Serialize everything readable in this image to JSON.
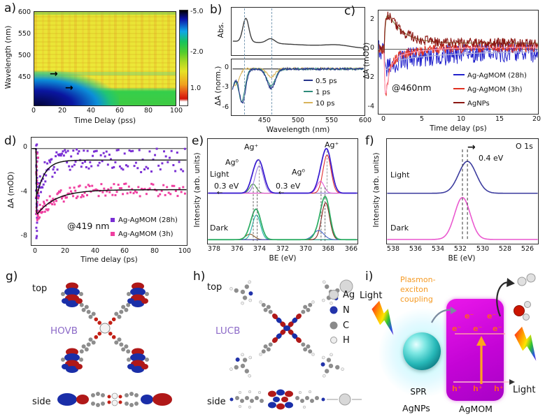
{
  "panels": {
    "a": {
      "label": "a)",
      "ylabel": "Wavelength (nm)",
      "xlabel": "Time Delay (pss)",
      "yticks": [
        "600",
        "550",
        "500",
        "450"
      ],
      "xticks": [
        "0",
        "20",
        "40",
        "60",
        "80",
        "100"
      ],
      "cbar": [
        "-5.0",
        "-2.0",
        "1.0"
      ]
    },
    "b": {
      "label": "b)",
      "abs_ylabel": "Abs.",
      "da_ylabel": "ΔA (norm.)",
      "xlabel": "Wavelength (nm)",
      "xticks": [
        "450",
        "500",
        "550",
        "600"
      ],
      "yticks": [
        "0",
        "-3",
        "-6"
      ],
      "legend": [
        "0.5 ps",
        "1 ps",
        "10 ps"
      ],
      "legend_colors": [
        "#27348b",
        "#2e8b7a",
        "#d8b35a"
      ]
    },
    "c": {
      "label": "c)",
      "ylabel": "ΔA (mOD)",
      "xlabel": "Time delay (ps)",
      "xticks": [
        "0",
        "5",
        "10",
        "15",
        "20"
      ],
      "yticks": [
        "2",
        "0",
        "-2",
        "-4"
      ],
      "note": "@460nm",
      "legend": [
        "Ag-AgMOM (28h)",
        "Ag-AgMOM (3h)",
        "AgNPs"
      ],
      "legend_colors": [
        "#2222cc",
        "#e03020",
        "#8b1712"
      ]
    },
    "d": {
      "label": "d)",
      "ylabel": "ΔA (mOD)",
      "xlabel": "Time delay (ps)",
      "xticks": [
        "0",
        "20",
        "40",
        "60",
        "80",
        "100"
      ],
      "yticks": [
        "0",
        "-4",
        "-8"
      ],
      "note": "@419 nm",
      "legend": [
        "Ag-AgMOM (28h)",
        "Ag-AgMOM (3h)"
      ],
      "legend_colors": [
        "#7a2fd4",
        "#ef3fa0"
      ]
    },
    "e": {
      "label": "e)",
      "ylabel": "Intensity (arb. units)",
      "xlabel": "BE (eV)",
      "xticks": [
        "378",
        "376",
        "374",
        "372",
        "370",
        "368",
        "366"
      ],
      "light": "Light",
      "dark": "Dark",
      "agp_l": "Ag⁺",
      "ag0_l": "Ag⁰",
      "agp_r": "Ag⁺",
      "ag0_r": "Ag⁰",
      "shift_l": "0.3 eV",
      "shift_r": "0.3 eV",
      "arrow_left": "←"
    },
    "f": {
      "label": "f)",
      "ylabel": "Intensity (arb. units)",
      "xlabel": "BE (eV)",
      "xticks": [
        "538",
        "536",
        "534",
        "532",
        "530",
        "528",
        "526"
      ],
      "light": "Light",
      "dark": "Dark",
      "corner": "O 1s",
      "shift": "0.4 eV",
      "arrow_right": "→"
    },
    "g": {
      "label": "g)",
      "top": "top",
      "side": "side",
      "orbital": "HOVB"
    },
    "h": {
      "label": "h)",
      "top": "top",
      "side": "side",
      "orbital": "LUCB",
      "atoms": [
        "Ag",
        "N",
        "C",
        "H"
      ]
    },
    "i": {
      "label": "i)",
      "coupling": "Plasmon-exciton coupling",
      "light1": "Light",
      "light2": "Light",
      "spr": "SPR",
      "agnps": "AgNPs",
      "agmom": "AgMOM",
      "e": [
        "e⁻",
        "e⁻",
        "e⁻",
        "e⁻",
        "e⁻"
      ],
      "h": [
        "h⁺",
        "h⁺",
        "h⁺"
      ]
    }
  },
  "chart_data": [
    {
      "id": "a",
      "type": "heatmap",
      "xlabel": "Time Delay (pss)",
      "ylabel": "Wavelength (nm)",
      "xlim": [
        0,
        100
      ],
      "ylim": [
        400,
        600
      ],
      "colorbar_ticks": [
        -5.0,
        -2.0,
        1.0
      ],
      "features": [
        "intense negative (blue) signal 405-425 nm near t=0",
        "persistent green bleach band ~410-425 nm at all delays",
        "weak bleach band near 455-460 nm (arrows)",
        "yellow/orange background ~ +0.5"
      ]
    },
    {
      "id": "b_abs",
      "type": "line",
      "ylabel": "Abs.",
      "xlim": [
        400,
        600
      ],
      "ylim": [
        0,
        1.05
      ],
      "series": [
        {
          "name": "absorption",
          "color": "#3a3a3a",
          "w": 1.4,
          "n": 300,
          "model": "gauss",
          "p": {
            "base": 0.31,
            "slope": -0.00078,
            "x0": 400,
            "peaks": [
              [
                420,
                0.52,
                6.5
              ],
              [
                458,
                0.1,
                9
              ],
              [
                560,
                0.045,
                26
              ]
            ]
          }
        }
      ]
    },
    {
      "id": "b_da",
      "type": "line",
      "ylabel": "ΔA (norm.)",
      "xlabel": "Wavelength (nm)",
      "xlim": [
        400,
        600
      ],
      "ylim": [
        -7.2,
        1.5
      ],
      "hlines": [
        {
          "y": 0,
          "color": "#111",
          "w": 1
        }
      ],
      "series": [
        {
          "name": "10 ps",
          "color": "#d8b35a",
          "w": 1.1,
          "n": 260,
          "seed": 2,
          "model": "gauss",
          "p": {
            "base": 0.05,
            "noise": 0.16,
            "peaks": [
              [
                399,
                -2.6,
                7
              ],
              [
                408,
                -1.6,
                6
              ],
              [
                459,
                -1.25,
                9
              ]
            ]
          }
        },
        {
          "name": "1 ps",
          "color": "#2e8b7a",
          "w": 1.1,
          "n": 260,
          "seed": 4,
          "model": "gauss",
          "p": {
            "base": 0,
            "noise": 0.15,
            "peaks": [
              [
                396,
                -3.7,
                8
              ],
              [
                414,
                -5.0,
                7
              ],
              [
                459,
                -2.6,
                9
              ]
            ]
          }
        },
        {
          "name": "0.5 ps",
          "color": "#27348b",
          "w": 1.1,
          "n": 260,
          "seed": 6,
          "model": "gauss",
          "p": {
            "base": 0,
            "noise": 0.17,
            "peaks": [
              [
                396,
                -4.0,
                8
              ],
              [
                415,
                -5.3,
                7
              ],
              [
                459,
                -3.05,
                9
              ]
            ]
          }
        }
      ]
    },
    {
      "id": "c",
      "type": "line",
      "xlabel": "Time delay (ps)",
      "ylabel": "ΔA (mOD)",
      "note": "@460nm",
      "xlim": [
        -0.7,
        20.05
      ],
      "ylim": [
        -4.5,
        2.7
      ],
      "hlines": [
        {
          "y": 0,
          "color": "#222",
          "w": 0.8
        }
      ],
      "series": [
        {
          "name": "Ag-AgMOM (28h)",
          "color": "#2222cc",
          "w": 1,
          "n": 300,
          "seed": 11,
          "model": "decay",
          "p": {
            "pre": 0,
            "base": -0.12,
            "a": [
              -1.05,
              -0.78
            ],
            "tau": [
              0.7,
              7.5
            ],
            "rise": 0.12,
            "noise": 0.75
          }
        },
        {
          "name": "fit 28h",
          "color": "#b8b8d8",
          "w": 1.2,
          "n": 200,
          "model": "decay",
          "p": {
            "pre": 0,
            "base": -0.12,
            "a": [
              -1.05,
              -0.78
            ],
            "tau": [
              0.7,
              7.5
            ],
            "rise": 0.12
          }
        },
        {
          "name": "Ag-AgMOM (3h)",
          "color": "#e03020",
          "w": 1,
          "n": 300,
          "seed": 3,
          "model": "decay",
          "p": {
            "pre": 0,
            "base": 0.14,
            "a": [
              -4.0,
              -0.92
            ],
            "tau": [
              0.5,
              3.8
            ],
            "rise": 0.08,
            "noise": 0.35
          }
        },
        {
          "name": "fit 3h",
          "color": "#ff9ab5",
          "w": 1.2,
          "n": 200,
          "model": "decay",
          "p": {
            "pre": 0,
            "base": 0.14,
            "a": [
              -4.0,
              -0.92
            ],
            "tau": [
              0.5,
              3.8
            ],
            "rise": 0.08
          }
        },
        {
          "name": "fit AgNPs",
          "color": "#8f8f55",
          "w": 1.3,
          "n": 200,
          "model": "decay",
          "p": {
            "pre": 0,
            "base": 0.42,
            "a": [
              2.7
            ],
            "tau": [
              2.0
            ],
            "rise": 0.18
          }
        },
        {
          "name": "AgNPs",
          "color": "#8b1712",
          "w": 1.1,
          "n": 300,
          "seed": 7,
          "model": "decay",
          "p": {
            "pre": 0,
            "base": 0.42,
            "a": [
              2.7
            ],
            "tau": [
              2.0
            ],
            "rise": 0.18,
            "noise": 0.35
          }
        }
      ]
    },
    {
      "id": "d",
      "type": "scatter",
      "xlabel": "Time delay (ps)",
      "ylabel": "ΔA (mOD)",
      "note": "@419 nm",
      "xlim": [
        -3,
        102
      ],
      "ylim": [
        -8.8,
        1.0
      ],
      "hlines": [
        {
          "y": 0,
          "color": "#333",
          "w": 1
        }
      ],
      "series": [
        {
          "name": "Ag-AgMOM (28h)",
          "color": "#7a2fd4",
          "style": "scatter",
          "n": 130,
          "seed": 5,
          "gamma": 1.7,
          "model": "decay",
          "p": {
            "pre": 0,
            "base": -1.05,
            "a": [
              -3.55
            ],
            "tau": [
              5.5
            ],
            "rise": 0.12,
            "noise": 1.0,
            "column": {
              "t": 0.5,
              "y0": -8.25,
              "y1": 0.3,
              "n": 24
            }
          }
        },
        {
          "name": "Ag-AgMOM (3h)",
          "color": "#ef3fa0",
          "style": "scatter",
          "n": 130,
          "seed": 9,
          "gamma": 1.6,
          "model": "decay",
          "p": {
            "pre": 0,
            "base": -3.75,
            "a": [
              -2.35
            ],
            "tau": [
              13
            ],
            "rise": 0.1,
            "noise": 0.55,
            "column": {
              "t": 0.8,
              "y0": -6.6,
              "y1": -0.4,
              "n": 16
            }
          }
        },
        {
          "name": "fit 28h",
          "color": "#111",
          "w": 1.5,
          "n": 220,
          "model": "decay",
          "p": {
            "pre": 0,
            "base": -1.05,
            "a": [
              -3.55
            ],
            "tau": [
              5.5
            ],
            "rise": 0.12
          }
        },
        {
          "name": "fit 3h",
          "color": "#111",
          "w": 1.5,
          "n": 220,
          "model": "decay",
          "p": {
            "pre": 0,
            "base": -3.75,
            "a": [
              -2.35
            ],
            "tau": [
              13
            ],
            "rise": 0.1
          }
        }
      ]
    },
    {
      "id": "e",
      "type": "line",
      "xlabel": "BE (eV)",
      "ylabel": "Intensity (arb. units)",
      "xlim": [
        378.6,
        365.4
      ],
      "ylim": [
        0,
        1.15
      ],
      "shift_annotations": [
        "0.3 eV",
        "0.3 eV"
      ],
      "peak_labels": [
        "Ag⁺",
        "Ag⁰"
      ],
      "vlines": [
        {
          "x": 374.6,
          "y0": 0.03,
          "y1": 0.62,
          "color": "#666",
          "dash": "3,2"
        },
        {
          "x": 374.25,
          "y0": 0.03,
          "y1": 0.62,
          "color": "#666",
          "dash": "3,2"
        },
        {
          "x": 368.6,
          "y0": 0.03,
          "y1": 0.62,
          "color": "#666",
          "dash": "3,2"
        },
        {
          "x": 368.25,
          "y0": 0.03,
          "y1": 0.62,
          "color": "#666",
          "dash": "3,2"
        },
        {
          "x": 374.07,
          "y0": 0.57,
          "y1": 0.93,
          "color": "#999",
          "dash": "3,2"
        },
        {
          "x": 368.07,
          "y0": 0.57,
          "y1": 1.02,
          "color": "#999",
          "dash": "3,2"
        }
      ],
      "series": [
        {
          "name": "dark baseline",
          "color": "#c8a060",
          "w": 1,
          "n": 40,
          "model": "gauss",
          "p": {
            "base": 0.045,
            "peaks": []
          }
        },
        {
          "name": "dark Ag0 374.9",
          "color": "#8a5a28",
          "w": 1.1,
          "n": 200,
          "model": "gauss",
          "p": {
            "base": 0.045,
            "peaks": [
              [
                374.9,
                0.06,
                0.55
              ]
            ]
          }
        },
        {
          "name": "dark Ag+ 374.3",
          "color": "#20b2a6",
          "w": 1.1,
          "n": 200,
          "model": "gauss",
          "p": {
            "base": 0.045,
            "peaks": [
              [
                374.32,
                0.27,
                0.5
              ]
            ]
          }
        },
        {
          "name": "dark Ag+ 368.2",
          "color": "#8a1f16",
          "w": 1.1,
          "n": 200,
          "model": "gauss",
          "p": {
            "base": 0.045,
            "peaks": [
              [
                368.2,
                0.405,
                0.5
              ]
            ]
          }
        },
        {
          "name": "dark Ag0 368.8",
          "color": "#4565c8",
          "w": 1.1,
          "n": 200,
          "model": "gauss",
          "p": {
            "base": 0.045,
            "peaks": [
              [
                368.82,
                0.1,
                0.65
              ]
            ]
          }
        },
        {
          "name": "dark envelope",
          "color": "#2fae66",
          "w": 1.8,
          "n": 300,
          "model": "gauss",
          "p": {
            "base": 0.045,
            "peaks": [
              [
                374.32,
                0.315,
                0.58
              ],
              [
                374.85,
                0.055,
                0.5
              ],
              [
                368.2,
                0.44,
                0.55
              ],
              [
                368.78,
                0.095,
                0.55
              ]
            ]
          }
        },
        {
          "name": "light Ag0 374.6",
          "color": "#3f8f3f",
          "w": 1.1,
          "n": 200,
          "model": "gauss",
          "p": {
            "base": 0.555,
            "peaks": [
              [
                374.62,
                0.1,
                0.42
              ]
            ]
          }
        },
        {
          "name": "light Ag+ 374.1",
          "color": "#9a7ae0",
          "w": 1.1,
          "n": 200,
          "model": "gauss",
          "p": {
            "base": 0.555,
            "peaks": [
              [
                374.07,
                0.3,
                0.52
              ]
            ]
          }
        },
        {
          "name": "light Ag+ 368.1",
          "color": "#e23030",
          "w": 1.1,
          "n": 200,
          "model": "gauss",
          "p": {
            "base": 0.555,
            "peaks": [
              [
                368.07,
                0.42,
                0.5
              ]
            ]
          }
        },
        {
          "name": "light Ag0 368.65",
          "color": "#e055d5",
          "w": 1.1,
          "n": 200,
          "model": "gauss",
          "p": {
            "base": 0.555,
            "peaks": [
              [
                368.65,
                0.13,
                0.45
              ]
            ]
          }
        },
        {
          "name": "light envelope",
          "color": "#3b1fd0",
          "w": 1.8,
          "n": 300,
          "model": "gauss",
          "p": {
            "base": 0.555,
            "peaks": [
              [
                374.07,
                0.335,
                0.6
              ],
              [
                374.62,
                0.095,
                0.48
              ],
              [
                368.07,
                0.455,
                0.58
              ],
              [
                368.65,
                0.115,
                0.5
              ]
            ]
          }
        }
      ]
    },
    {
      "id": "f",
      "type": "line",
      "xlabel": "BE (eV)",
      "ylabel": "Intensity (arb. units)",
      "corner_label": "O 1s",
      "shift": "0.4 eV",
      "xlim": [
        538.6,
        525.0
      ],
      "ylim": [
        0,
        1.1
      ],
      "vlines": [
        {
          "x": 531.8,
          "y0": 0.05,
          "y1": 0.99,
          "color": "#333",
          "dash": "4,3"
        },
        {
          "x": 531.35,
          "y0": 0.05,
          "y1": 0.99,
          "color": "#333",
          "dash": "4,3"
        }
      ],
      "series": [
        {
          "name": "Light",
          "color": "#3b3b9e",
          "w": 1.6,
          "n": 300,
          "model": "gauss",
          "p": {
            "base": 0.53,
            "peaks": [
              [
                531.35,
                0.335,
                1.12
              ]
            ]
          }
        },
        {
          "name": "Dark",
          "color": "#ea58cf",
          "w": 1.6,
          "n": 300,
          "model": "gauss",
          "p": {
            "base": 0.045,
            "peaks": [
              [
                531.8,
                0.44,
                1.0
              ]
            ]
          }
        }
      ]
    }
  ]
}
